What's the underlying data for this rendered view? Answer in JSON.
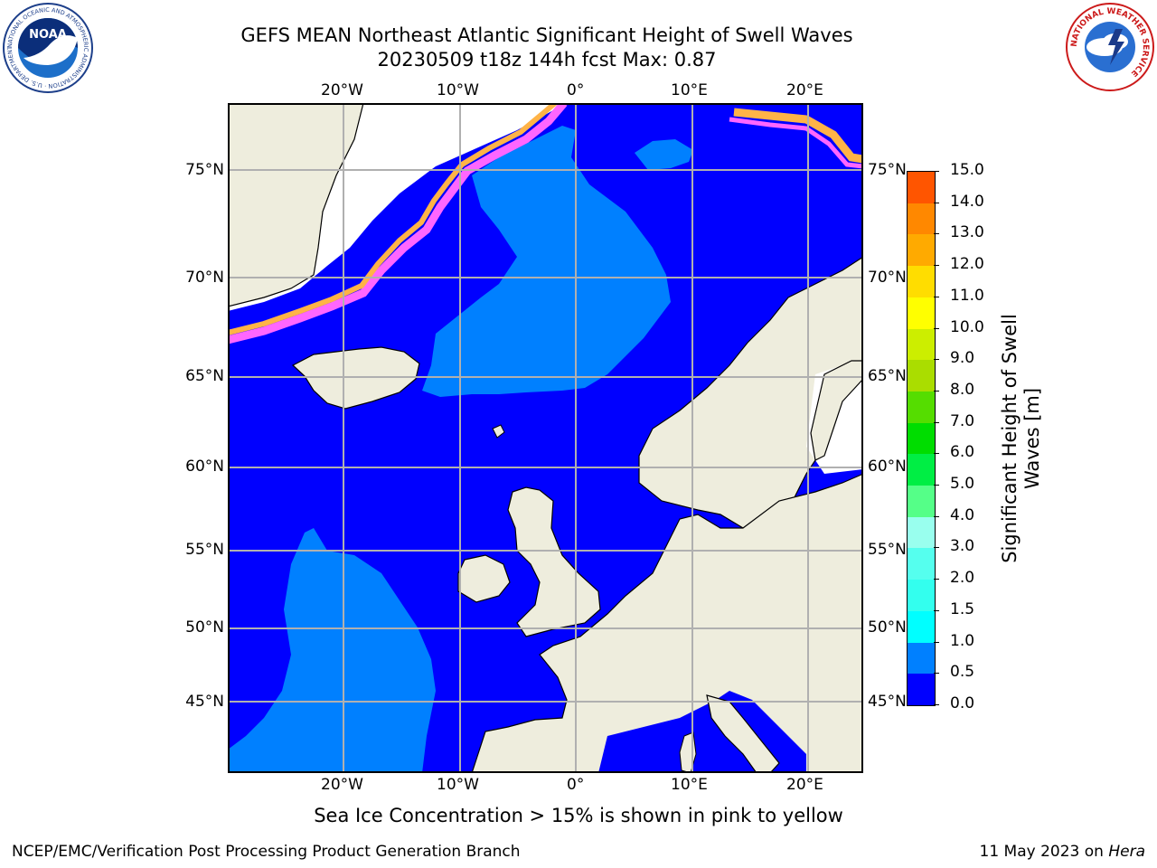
{
  "title": {
    "line1": "GEFS MEAN Northeast Atlantic Significant Height of Swell Waves",
    "line2": "20230509 t18z 144h fcst   Max: 0.87"
  },
  "logos": {
    "noaa_text": "NOAA",
    "noaa_ring": "NATIONAL OCEANIC AND ATMOSPHERIC ADMINISTRATION · U.S. DEPARTMENT OF COMMERCE",
    "nws_ring": "NATIONAL WEATHER SERVICE"
  },
  "map": {
    "lon_labels": [
      "20°W",
      "10°W",
      "0°",
      "10°E",
      "20°E"
    ],
    "lat_labels": [
      "75°N",
      "70°N",
      "65°N",
      "60°N",
      "55°N",
      "50°N",
      "45°N"
    ],
    "colors": {
      "land": "#eeeddd",
      "ice_free_sea_white": "#ffffff",
      "sea_low": "#0000ff",
      "sea_mid": "#0080ff",
      "ice_pink": "#ff66ff",
      "ice_orange": "#ffb347",
      "ice_yellow": "#ffe066",
      "grid": "#b0b0b0"
    }
  },
  "colorbar": {
    "label_line1": "Significant Height of Swell",
    "label_line2": "Waves [m]",
    "ticks": [
      "15.0",
      "14.0",
      "13.0",
      "12.0",
      "11.0",
      "10.0",
      "9.0",
      "8.0",
      "7.0",
      "6.0",
      "5.0",
      "4.0",
      "3.0",
      "2.0",
      "1.5",
      "1.0",
      "0.5",
      "0.0"
    ],
    "colors_bottom_to_top": [
      "#0000ff",
      "#0080ff",
      "#00ffff",
      "#33ffee",
      "#55ffee",
      "#99ffee",
      "#55ff88",
      "#00ee44",
      "#00dd00",
      "#55dd00",
      "#aadd00",
      "#ccee00",
      "#ffff00",
      "#ffdd00",
      "#ffaa00",
      "#ff8800",
      "#ff5500",
      "#ff2200",
      "#ff0000"
    ]
  },
  "note": "Sea Ice Concentration > 15% is shown in pink to yellow",
  "footer": {
    "left": "NCEP/EMC/Verification Post Processing Product Generation Branch",
    "right_prefix": "11 May 2023 on ",
    "right_host": "Hera"
  }
}
